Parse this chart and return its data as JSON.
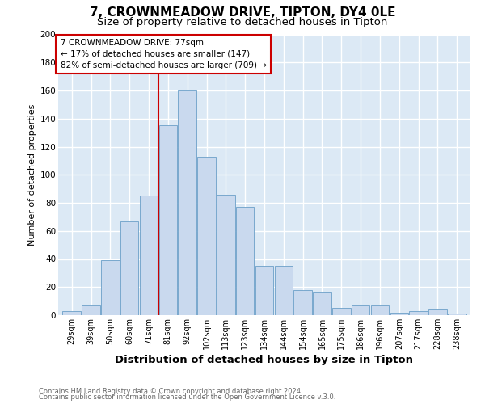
{
  "title": "7, CROWNMEADOW DRIVE, TIPTON, DY4 0LE",
  "subtitle": "Size of property relative to detached houses in Tipton",
  "xlabel": "Distribution of detached houses by size in Tipton",
  "ylabel": "Number of detached properties",
  "categories": [
    "29sqm",
    "39sqm",
    "50sqm",
    "60sqm",
    "71sqm",
    "81sqm",
    "92sqm",
    "102sqm",
    "113sqm",
    "123sqm",
    "134sqm",
    "144sqm",
    "154sqm",
    "165sqm",
    "175sqm",
    "186sqm",
    "196sqm",
    "207sqm",
    "217sqm",
    "228sqm",
    "238sqm"
  ],
  "values": [
    3,
    7,
    39,
    67,
    85,
    135,
    160,
    113,
    86,
    77,
    35,
    35,
    18,
    16,
    5,
    7,
    7,
    2,
    3,
    4,
    1
  ],
  "bar_color": "#c9d9ee",
  "bar_edge_color": "#6a9fc8",
  "plot_bg_color": "#dce9f5",
  "fig_bg_color": "#ffffff",
  "grid_color": "#ffffff",
  "marker_color": "#cc0000",
  "marker_bin_index": 5,
  "annotation_title": "7 CROWNMEADOW DRIVE: 77sqm",
  "annotation_line1": "← 17% of detached houses are smaller (147)",
  "annotation_line2": "82% of semi-detached houses are larger (709) →",
  "footer1": "Contains HM Land Registry data © Crown copyright and database right 2024.",
  "footer2": "Contains public sector information licensed under the Open Government Licence v.3.0.",
  "ylim": [
    0,
    200
  ],
  "title_fontsize": 11,
  "subtitle_fontsize": 9.5,
  "xlabel_fontsize": 9.5,
  "ylabel_fontsize": 8,
  "tick_fontsize": 7,
  "annotation_fontsize": 7.5,
  "footer_fontsize": 6.0
}
